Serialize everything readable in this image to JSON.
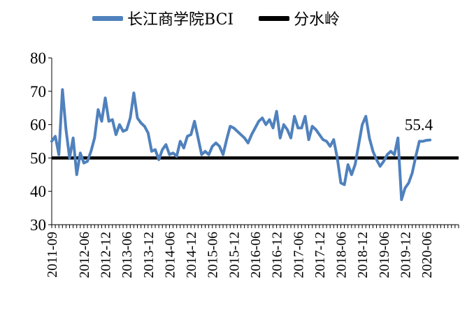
{
  "chart_data": {
    "type": "line",
    "legend_position": "top",
    "grid": false,
    "ylim": [
      30,
      80
    ],
    "yticks": [
      30,
      40,
      50,
      60,
      70,
      80
    ],
    "x_tick_labels": [
      "2011-09",
      "2012-06",
      "2012-12",
      "2013-06",
      "2013-12",
      "2014-06",
      "2014-12",
      "2015-06",
      "2015-12",
      "2016-06",
      "2016-12",
      "2017-06",
      "2017-12",
      "2018-06",
      "2018-12",
      "2019-06",
      "2019-12",
      "2020-06"
    ],
    "tick_start": "2011-09",
    "end": "2021-03",
    "series": [
      {
        "name": "长江商学院BCI",
        "color": "#4F81BD",
        "start": "2011-09",
        "values": [
          55,
          56.5,
          51,
          70.5,
          58.5,
          50,
          56,
          45,
          51.5,
          48.5,
          49,
          52,
          56,
          64.5,
          61,
          68,
          61,
          61.5,
          57,
          60,
          58,
          58.5,
          62,
          69.5,
          62,
          60.5,
          59.5,
          57.5,
          52,
          52.5,
          49.5,
          52.5,
          54,
          51,
          51.5,
          50.5,
          55,
          53,
          56.5,
          57,
          61,
          56,
          51,
          52,
          51,
          53.5,
          54.5,
          53.5,
          51,
          55.5,
          59.5,
          59,
          58,
          57,
          56,
          54.5,
          57,
          59,
          61,
          62,
          60,
          61.5,
          59,
          64,
          56,
          60,
          58.5,
          56,
          62.5,
          59,
          59,
          62.5,
          55.5,
          59.5,
          58.5,
          57,
          55.5,
          55,
          53.5,
          55.5,
          50,
          42.5,
          42,
          48,
          45,
          48,
          54,
          60,
          62.5,
          56,
          52,
          49.5,
          47.5,
          49,
          51,
          52,
          51,
          56,
          37.5,
          41,
          42.5,
          45.5,
          50.5,
          55,
          55,
          55.3,
          55.4
        ]
      },
      {
        "name": "分水岭",
        "color": "#000000",
        "constant": 50
      }
    ],
    "annotations": [
      {
        "text": "55.4"
      }
    ]
  }
}
